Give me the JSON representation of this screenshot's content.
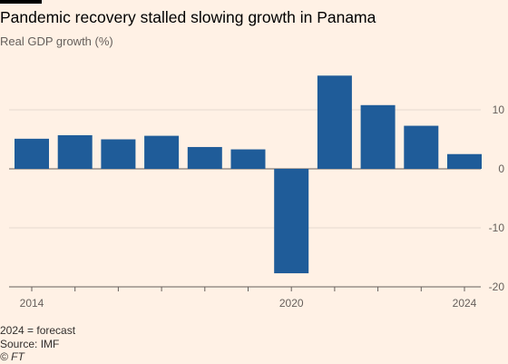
{
  "chart_data": {
    "type": "bar",
    "title": "Pandemic recovery stalled slowing growth in Panama",
    "subtitle": "Real GDP growth (%)",
    "categories": [
      2014,
      2015,
      2016,
      2017,
      2018,
      2019,
      2020,
      2021,
      2022,
      2023,
      2024
    ],
    "values": [
      5.1,
      5.7,
      5.0,
      5.6,
      3.7,
      3.3,
      -17.7,
      15.8,
      10.8,
      7.3,
      2.5
    ],
    "x_tick_labels": [
      {
        "year": 2014,
        "label": "2014"
      },
      {
        "year": 2020,
        "label": "2020"
      },
      {
        "year": 2024,
        "label": "2024"
      }
    ],
    "y_ticks": [
      10,
      0,
      -10,
      -20
    ],
    "y_tick_labels": [
      "10",
      "0",
      "-10",
      "-20"
    ],
    "ylim": [
      -20,
      20
    ],
    "y_axis_side": "right",
    "grid": true,
    "bar_color": "#1f5c99"
  },
  "footer": {
    "note": "2024 = forecast",
    "source": "Source: IMF",
    "credit": "© FT"
  }
}
